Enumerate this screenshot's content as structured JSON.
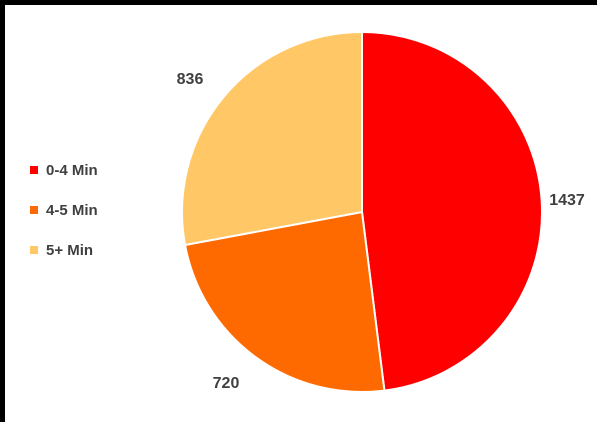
{
  "chart_data": {
    "type": "pie",
    "title": "",
    "categories": [
      "0-4 Min",
      "4-5 Min",
      "5+ Min"
    ],
    "values": [
      1437,
      720,
      836
    ],
    "colors": [
      "#ff0000",
      "#ff6a00",
      "#ffc766"
    ],
    "data_labels": [
      "1437",
      "720",
      "836"
    ],
    "legend_position": "left"
  },
  "legend": {
    "items": [
      {
        "label": "0-4 Min",
        "color": "#ff0000"
      },
      {
        "label": "4-5 Min",
        "color": "#ff6a00"
      },
      {
        "label": "5+ Min",
        "color": "#ffc766"
      }
    ]
  }
}
